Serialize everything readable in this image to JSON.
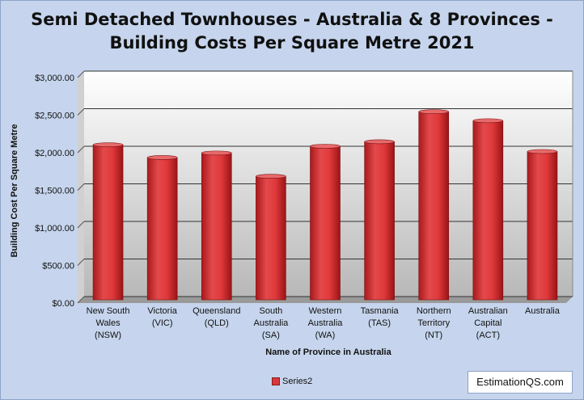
{
  "chart_data": {
    "type": "bar",
    "title_line1": "Semi Detached Townhouses  - Australia & 8 Provinces -",
    "title_line2": "Building Costs Per Square Metre 2021",
    "xlabel": "Name of Province in Australia",
    "ylabel": "Building Cost Per Square Metre",
    "ylim": [
      0,
      3000
    ],
    "yticks": [
      0,
      500,
      1000,
      1500,
      2000,
      2500,
      3000
    ],
    "ytick_labels": [
      "$0.00",
      "$500.00",
      "$1,000.00",
      "$1,500.00",
      "$2,000.00",
      "$2,500.00",
      "$3,000.00"
    ],
    "grid": true,
    "legend_position": "bottom",
    "categories": [
      [
        "New South",
        "Wales",
        "(NSW)"
      ],
      [
        "Victoria",
        "(VIC)"
      ],
      [
        "Queensland",
        "(QLD)"
      ],
      [
        "South",
        "Australia",
        "(SA)"
      ],
      [
        "Western",
        "Australia",
        "(WA)"
      ],
      [
        "Tasmania",
        "(TAS)"
      ],
      [
        "Northern",
        "Territory",
        "(NT)"
      ],
      [
        "Australian",
        "Capital",
        "(ACT)"
      ],
      [
        "Australia"
      ]
    ],
    "series": [
      {
        "name": "Series2",
        "values": [
          2020,
          1850,
          1910,
          1600,
          2000,
          2060,
          2460,
          2340,
          1930
        ],
        "color": "#d9383a"
      }
    ]
  },
  "branding": "EstimationQS.com"
}
